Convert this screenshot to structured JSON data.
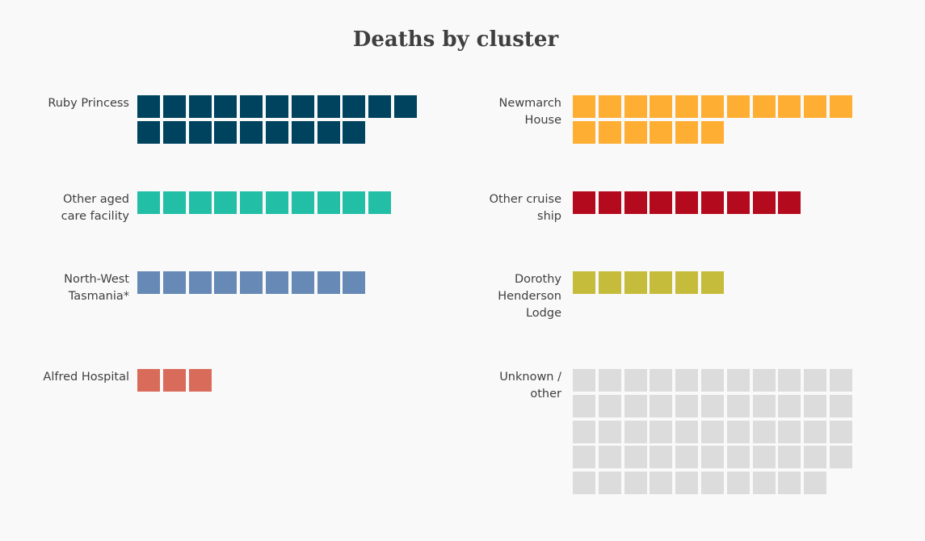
{
  "chart_data": {
    "type": "waffle",
    "title": "Deaths by cluster",
    "unit_per_square": 1,
    "clusters": [
      {
        "id": "ruby-princess",
        "label_lines": [
          "Ruby Princess"
        ],
        "value": 20,
        "color": "#00435f"
      },
      {
        "id": "newmarch-house",
        "label_lines": [
          "Newmarch",
          "House"
        ],
        "value": 17,
        "color": "#ffae34"
      },
      {
        "id": "other-aged-care",
        "label_lines": [
          "Other aged",
          "care facility"
        ],
        "value": 10,
        "color": "#22bea6"
      },
      {
        "id": "other-cruise-ship",
        "label_lines": [
          "Other cruise",
          "ship"
        ],
        "value": 9,
        "color": "#b40a1e"
      },
      {
        "id": "north-west-tasmania",
        "label_lines": [
          "North-West",
          "Tasmania*"
        ],
        "value": 9,
        "color": "#6789b6"
      },
      {
        "id": "dorothy-henderson-lodge",
        "label_lines": [
          "Dorothy",
          "Henderson",
          "Lodge"
        ],
        "value": 6,
        "color": "#c5bc3b"
      },
      {
        "id": "alfred-hospital",
        "label_lines": [
          "Alfred Hospital"
        ],
        "value": 3,
        "color": "#d96b5b"
      },
      {
        "id": "unknown-other",
        "label_lines": [
          "Unknown /",
          "other"
        ],
        "value": 54,
        "color": "#dcdcdc"
      }
    ]
  }
}
